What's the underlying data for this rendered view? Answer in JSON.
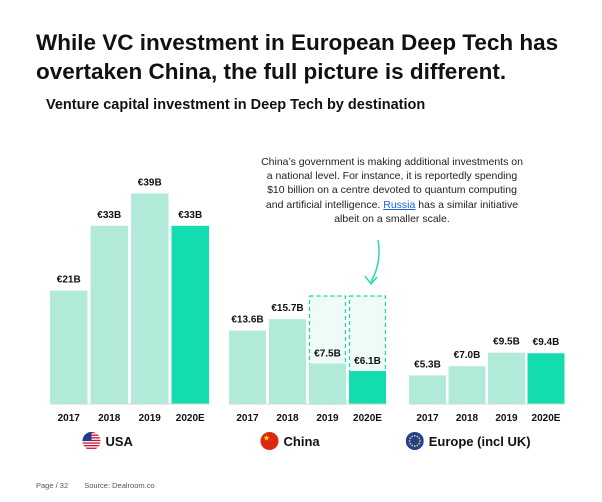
{
  "title": "While VC investment in European Deep Tech has overtaken China, the full picture is different.",
  "footer": {
    "page": "Page / 32",
    "source": "Source: Dealroom.co"
  },
  "annotation": {
    "text_before": "China’s government is making additional investments on a national level. For instance, it is reportedly spending $10 billion on a centre devoted to quantum computing and artificial intelligence.",
    "link": "Russia",
    "text_after": "has a similar initiative albeit on a smaller scale."
  },
  "colors": {
    "bar_normal": "#b2ead9",
    "bar_highlight": "#13dcae",
    "dashed": "#17d9ab",
    "ghost_fill": "#eefbf6"
  },
  "chart_data": {
    "type": "bar",
    "title": "Venture capital investment in Deep Tech by destination",
    "categories": [
      "2017",
      "2018",
      "2019",
      "2020E"
    ],
    "series": [
      {
        "name": "USA",
        "flag": "usa-flag-icon",
        "values": [
          21,
          33,
          39,
          33
        ],
        "labels": [
          "€21B",
          "€33B",
          "€39B",
          "€33B"
        ]
      },
      {
        "name": "China",
        "flag": "china-flag-icon",
        "values": [
          13.6,
          15.7,
          7.5,
          6.1
        ],
        "labels": [
          "€13.6B",
          "€15.7B",
          "€7.5B",
          "€6.1B"
        ],
        "ghost_values": [
          null,
          null,
          20,
          20
        ]
      },
      {
        "name": "Europe (incl UK)",
        "flag": "eu-flag-icon",
        "values": [
          5.3,
          7.0,
          9.5,
          9.4
        ],
        "labels": [
          "€5.3B",
          "€7.0B",
          "€9.5B",
          "€9.4B"
        ]
      }
    ],
    "highlight_category": "2020E",
    "unit": "€B",
    "grid": false
  }
}
